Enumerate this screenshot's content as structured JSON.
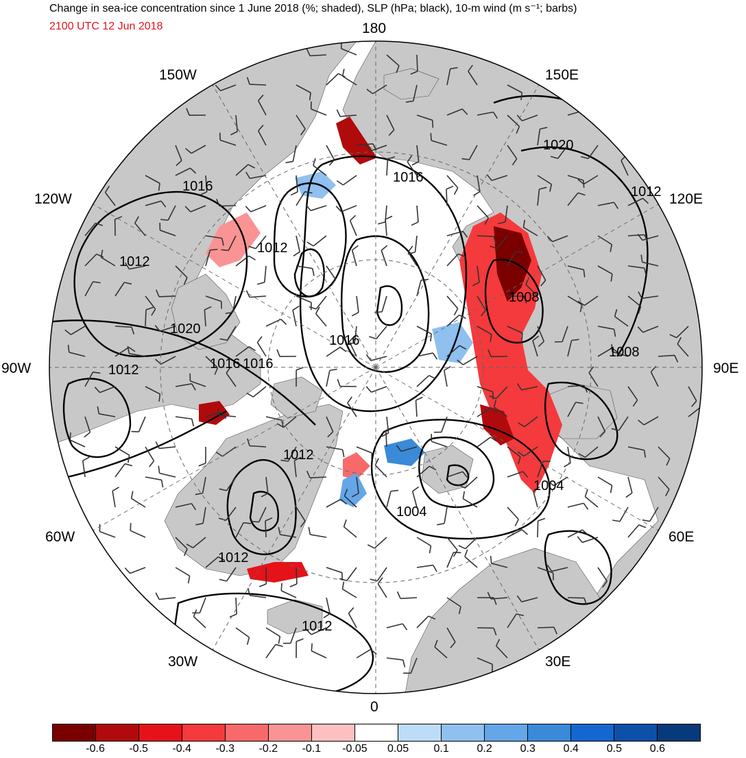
{
  "title": "Change in sea-ice concentration since 1 June 2018 (%; shaded), SLP (hPa; black), 10-m wind (m s⁻¹; barbs)",
  "subtitle": "2100 UTC 12 Jun 2018",
  "longitude_labels": [
    "180",
    "150E",
    "120E",
    "90E",
    "60E",
    "30E",
    "0",
    "30W",
    "60W",
    "90W",
    "120W",
    "150W"
  ],
  "slp_contour_labels": [
    "1020",
    "1016",
    "1012",
    "1008",
    "1008",
    "1012",
    "1016",
    "1012",
    "1016",
    "1012",
    "1020",
    "1016",
    "1016",
    "1012",
    "1012",
    "1004",
    "1004",
    "1012"
  ],
  "colorbar": {
    "tick_labels": [
      "-0.6",
      "-0.5",
      "-0.4",
      "-0.3",
      "-0.2",
      "-0.1",
      "-0.05",
      "0.05",
      "0.1",
      "0.2",
      "0.3",
      "0.4",
      "0.5",
      "0.6"
    ],
    "colors": [
      "#7a0000",
      "#b00a0c",
      "#e5121a",
      "#f43a3c",
      "#f86a6a",
      "#fa9494",
      "#fdc0c0",
      "#ffffff",
      "#bcdcf8",
      "#8fc0f0",
      "#64a6e8",
      "#3a8ad8",
      "#1466d0",
      "#0c50a8",
      "#073a7a"
    ]
  },
  "colors": {
    "land": "#c8c8c8",
    "ocean": "#ffffff",
    "subtitle": "#e0141e",
    "contour": "#000000"
  }
}
